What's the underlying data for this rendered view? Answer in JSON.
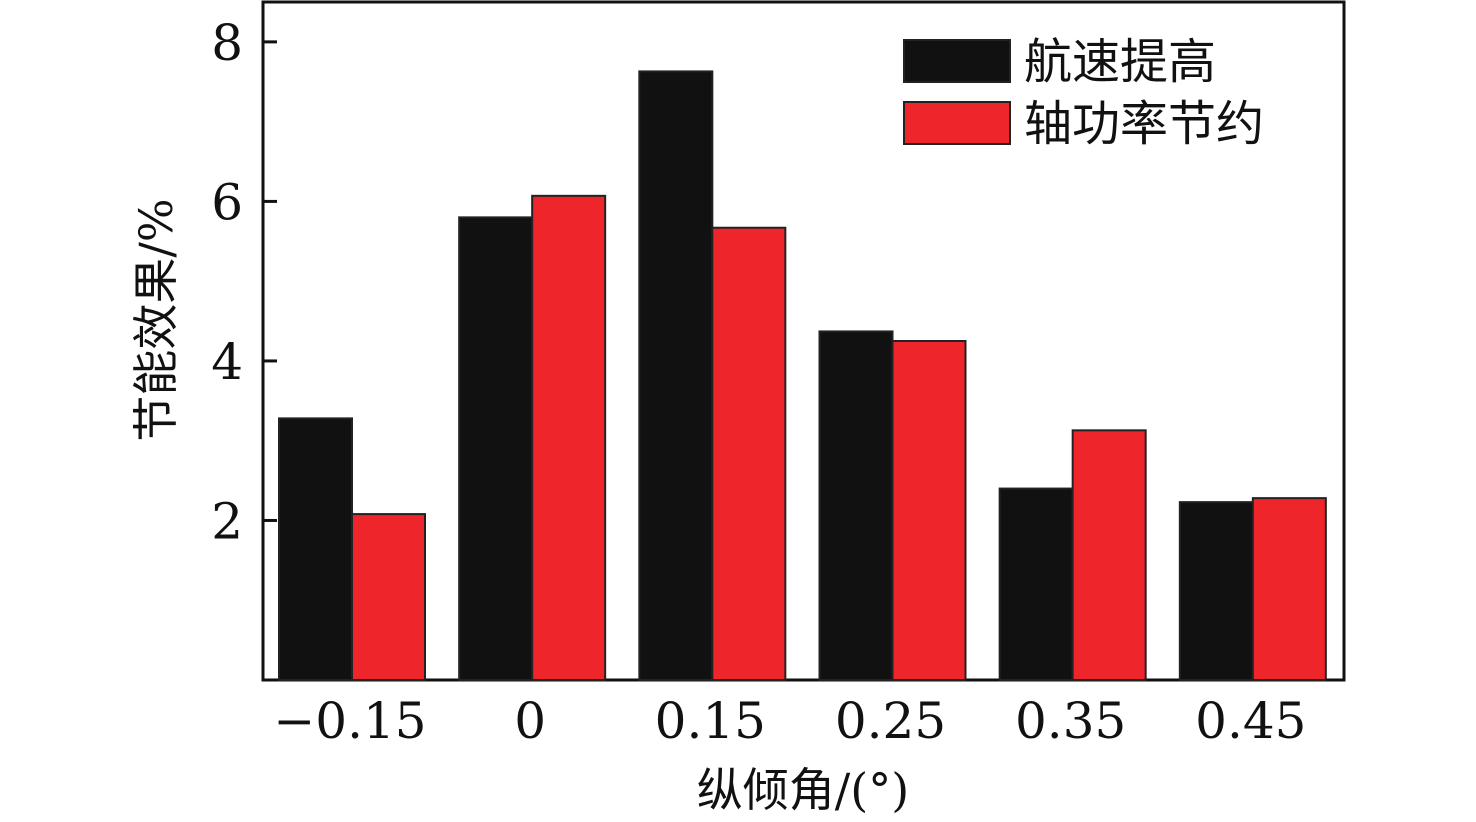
{
  "chart_data": {
    "type": "bar",
    "xlabel": "纵倾角/(°)",
    "ylabel": "节能效果/%",
    "categories": [
      "−0.15",
      "0",
      "0.15",
      "0.25",
      "0.35",
      "0.45"
    ],
    "series": [
      {
        "name": "航速提高",
        "color": "#111111",
        "values": [
          3.28,
          5.8,
          7.63,
          4.37,
          2.4,
          2.23
        ]
      },
      {
        "name": "轴功率节约",
        "color": "#ee252b",
        "values": [
          2.08,
          6.07,
          5.67,
          4.25,
          3.13,
          2.28
        ]
      }
    ],
    "ylim": [
      0,
      8.5
    ],
    "yticks": [
      2,
      4,
      6,
      8
    ],
    "legend": "top-right",
    "grid": false
  }
}
